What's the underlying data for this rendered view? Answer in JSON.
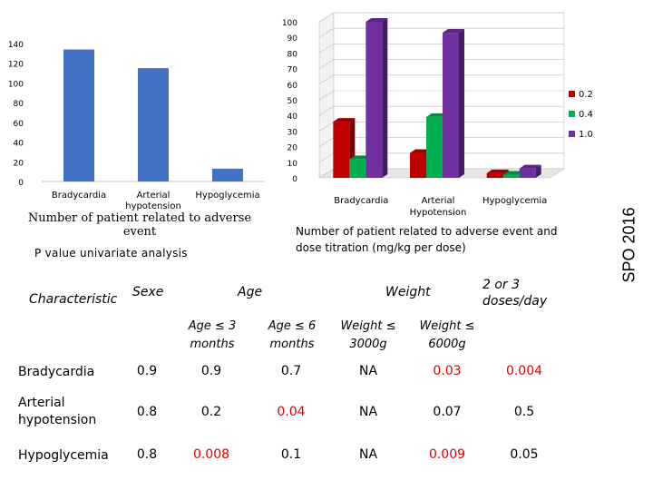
{
  "chart_data": [
    {
      "type": "bar",
      "categories": [
        "Bradycardia",
        "Arterial hypotension",
        "Hypoglycemia"
      ],
      "values": [
        134,
        115,
        13
      ],
      "ylim": [
        0,
        140
      ],
      "yticks": [
        "0",
        "20",
        "40",
        "60",
        "80",
        "100",
        "120",
        "140"
      ],
      "xlabel": "Number of patient related to adverse event",
      "color": "#4472c4",
      "grid": false
    },
    {
      "type": "bar",
      "style": "3d",
      "categories": [
        "Bradycardia",
        "Arterial Hypotension",
        "Hypoglycemia"
      ],
      "series": [
        {
          "name": "0.2",
          "color": "#c00000",
          "values": [
            36,
            16,
            3
          ]
        },
        {
          "name": "0.4",
          "color": "#00b050",
          "values": [
            12,
            39,
            2
          ]
        },
        {
          "name": "1.0",
          "color": "#7030a0",
          "values": [
            100,
            93,
            6
          ]
        }
      ],
      "ylim": [
        0,
        100
      ],
      "yticks": [
        "0",
        "10",
        "20",
        "30",
        "40",
        "50",
        "60",
        "70",
        "80",
        "90",
        "100"
      ],
      "xlabel": "Number of patient related to  adverse event and dose titration (mg/kg per dose)",
      "legend": "right"
    }
  ],
  "sidebar": {
    "label": "SPO 2016"
  },
  "table": {
    "title": "P value univariate analysis",
    "headers": {
      "characteristic": "Characteristic",
      "sexe": "Sexe",
      "age": "Age",
      "weight": "Weight",
      "doses": "2 or 3 doses/day",
      "age1": "Age ≤  3 months",
      "age2": "Age ≤ 6 months",
      "weight1": "Weight ≤ 3000g",
      "weight2": "Weight ≤ 6000g"
    },
    "rows": [
      {
        "label": "Bradycardia",
        "values": [
          "0.9",
          "0.9",
          "0.7",
          "NA",
          "0.03",
          "0.004"
        ],
        "red": [
          false,
          false,
          false,
          false,
          true,
          true
        ]
      },
      {
        "label": "Arterial hypotension",
        "values": [
          "0.8",
          "0.2",
          "0.04",
          "NA",
          "0.07",
          "0.5"
        ],
        "red": [
          false,
          false,
          true,
          false,
          false,
          false
        ]
      },
      {
        "label": "Hypoglycemia",
        "values": [
          "0.8",
          "0.008",
          "0.1",
          "NA",
          "0.009",
          "0.05"
        ],
        "red": [
          false,
          true,
          false,
          false,
          true,
          false
        ]
      }
    ]
  }
}
